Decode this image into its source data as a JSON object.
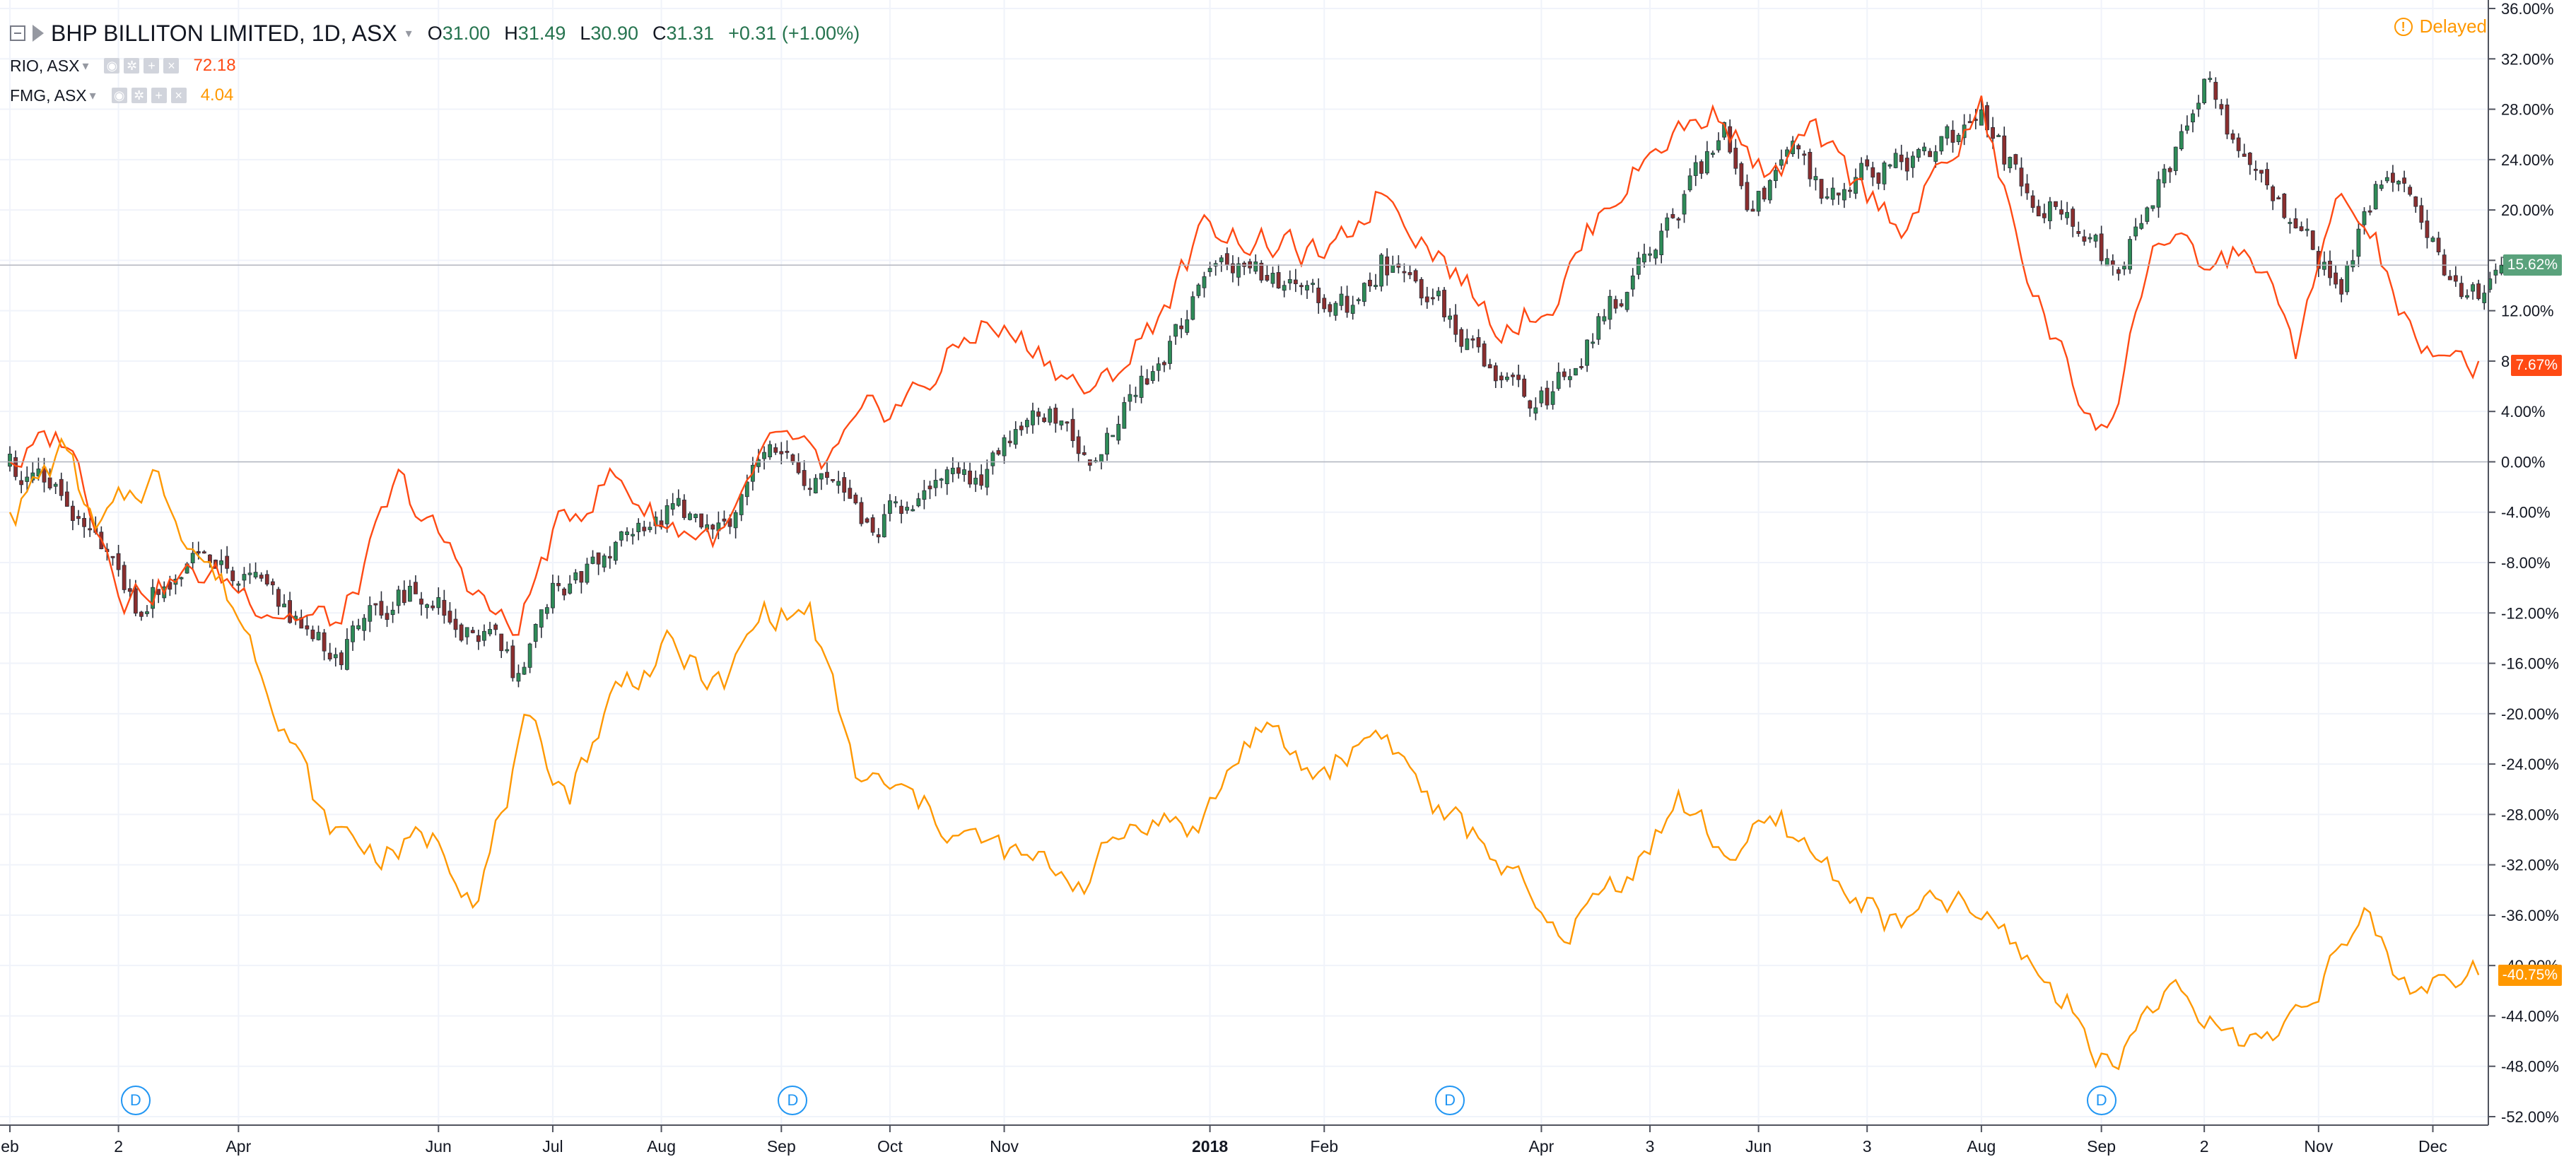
{
  "legend": {
    "main_symbol": "BHP BILLITON LIMITED, 1D, ASX",
    "open_label": "O",
    "open": "31.00",
    "high_label": "H",
    "high": "31.49",
    "low_label": "L",
    "low": "30.90",
    "close_label": "C",
    "close": "31.31",
    "change": "+0.31 (+1.00%)",
    "compare": [
      {
        "symbol": "RIO, ASX",
        "value": "72.18",
        "color": "#ff4a14"
      },
      {
        "symbol": "FMG, ASX",
        "value": "4.04",
        "color": "#ff9800"
      }
    ]
  },
  "status": {
    "delayed": "Delayed"
  },
  "dividend_marker_label": "D",
  "badges": {
    "main": "15.62%",
    "rio": "7.67%",
    "fmg": "-40.75%"
  },
  "colors": {
    "up": "#2e8b57",
    "down": "#8b2e2e",
    "rio": "#ff4a14",
    "fmg": "#ff9800",
    "grid": "#f0f3fa",
    "badge_main": "#5aa27c"
  },
  "chart_data": {
    "type": "line",
    "title": "BHP BILLITON LIMITED, 1D, ASX",
    "x_tick_labels": [
      "eb",
      "2",
      "Apr",
      "Jun",
      "Jul",
      "Aug",
      "Sep",
      "Oct",
      "Nov",
      "2018",
      "Feb",
      "Apr",
      "3",
      "Jun",
      "3",
      "Aug",
      "Sep",
      "2",
      "Nov",
      "Dec"
    ],
    "x_tick_index": [
      0,
      19,
      40,
      75,
      95,
      114,
      135,
      154,
      174,
      210,
      230,
      268,
      287,
      306,
      325,
      345,
      366,
      384,
      404,
      424
    ],
    "y_axis": {
      "unit": "%",
      "ylim": [
        -52,
        36
      ],
      "ticks": [
        "36.00%",
        "32.00%",
        "28.00%",
        "24.00%",
        "20.00%",
        "16.00%",
        "12.00%",
        "8.00%",
        "4.00%",
        "0.00%",
        "-4.00%",
        "-8.00%",
        "-12.00%",
        "-16.00%",
        "-20.00%",
        "-24.00%",
        "-28.00%",
        "-32.00%",
        "-36.00%",
        "-40.00%",
        "-44.00%",
        "-48.00%",
        "-52.00%"
      ],
      "tick_values": [
        36,
        32,
        28,
        24,
        20,
        16,
        12,
        8,
        4,
        0,
        -4,
        -8,
        -12,
        -16,
        -20,
        -24,
        -28,
        -32,
        -36,
        -40,
        -44,
        -48,
        -52
      ]
    },
    "bars_count": 430,
    "dividend_bar_index": [
      22,
      137,
      252,
      366
    ],
    "grid": true,
    "series": [
      {
        "name": "BHP BILLITON LIMITED, 1D, ASX",
        "style": "candles",
        "last_change_pct": 15.62,
        "anchors": [
          [
            0,
            0
          ],
          [
            10,
            -4
          ],
          [
            22,
            -11
          ],
          [
            35,
            -8
          ],
          [
            48,
            -12
          ],
          [
            58,
            -15
          ],
          [
            70,
            -10
          ],
          [
            85,
            -15
          ],
          [
            88,
            -17
          ],
          [
            95,
            -10
          ],
          [
            105,
            -8
          ],
          [
            115,
            -4
          ],
          [
            125,
            -5
          ],
          [
            135,
            2
          ],
          [
            142,
            -2
          ],
          [
            150,
            -5
          ],
          [
            160,
            -3
          ],
          [
            170,
            -1
          ],
          [
            180,
            4
          ],
          [
            190,
            1
          ],
          [
            200,
            7
          ],
          [
            212,
            16
          ],
          [
            225,
            13
          ],
          [
            235,
            12
          ],
          [
            240,
            16
          ],
          [
            250,
            13
          ],
          [
            258,
            7
          ],
          [
            270,
            5
          ],
          [
            278,
            11
          ],
          [
            290,
            18
          ],
          [
            300,
            26
          ],
          [
            305,
            20
          ],
          [
            312,
            24
          ],
          [
            318,
            20
          ],
          [
            325,
            23
          ],
          [
            332,
            24
          ],
          [
            345,
            27
          ],
          [
            352,
            22
          ],
          [
            362,
            19
          ],
          [
            368,
            15
          ],
          [
            375,
            20
          ],
          [
            384,
            31
          ],
          [
            392,
            23
          ],
          [
            400,
            19
          ],
          [
            408,
            14
          ],
          [
            416,
            24
          ],
          [
            422,
            20
          ],
          [
            428,
            14
          ],
          [
            433,
            14
          ],
          [
            436,
            16
          ]
        ]
      },
      {
        "name": "RIO, ASX",
        "style": "line",
        "color": "#ff4a14",
        "last_change_pct": 7.67,
        "anchors": [
          [
            0,
            0
          ],
          [
            10,
            2
          ],
          [
            20,
            -10
          ],
          [
            35,
            -9
          ],
          [
            50,
            -12
          ],
          [
            58,
            -13
          ],
          [
            68,
            -2
          ],
          [
            78,
            -8
          ],
          [
            88,
            -14
          ],
          [
            95,
            -6
          ],
          [
            105,
            -1
          ],
          [
            115,
            -5
          ],
          [
            125,
            -6
          ],
          [
            135,
            2
          ],
          [
            142,
            -1
          ],
          [
            150,
            3
          ],
          [
            160,
            6
          ],
          [
            170,
            11
          ],
          [
            180,
            9
          ],
          [
            190,
            5
          ],
          [
            200,
            11
          ],
          [
            210,
            19
          ],
          [
            222,
            17
          ],
          [
            232,
            16
          ],
          [
            240,
            22
          ],
          [
            250,
            17
          ],
          [
            260,
            11
          ],
          [
            270,
            13
          ],
          [
            280,
            21
          ],
          [
            290,
            26
          ],
          [
            300,
            28
          ],
          [
            308,
            22
          ],
          [
            315,
            26
          ],
          [
            322,
            22
          ],
          [
            332,
            19
          ],
          [
            345,
            28
          ],
          [
            352,
            16
          ],
          [
            362,
            5
          ],
          [
            368,
            3
          ],
          [
            375,
            18
          ],
          [
            384,
            15
          ],
          [
            392,
            17
          ],
          [
            400,
            9
          ],
          [
            408,
            21
          ],
          [
            414,
            17
          ],
          [
            420,
            10
          ],
          [
            426,
            7
          ],
          [
            432,
            8
          ]
        ]
      },
      {
        "name": "FMG, ASX",
        "style": "line",
        "color": "#ff9800",
        "last_change_pct": -40.75,
        "anchors": [
          [
            0,
            -4
          ],
          [
            10,
            1
          ],
          [
            15,
            -6
          ],
          [
            25,
            -1
          ],
          [
            32,
            -6
          ],
          [
            40,
            -12
          ],
          [
            48,
            -20
          ],
          [
            55,
            -29
          ],
          [
            65,
            -31
          ],
          [
            75,
            -30
          ],
          [
            82,
            -34
          ],
          [
            90,
            -22
          ],
          [
            98,
            -26
          ],
          [
            106,
            -18
          ],
          [
            115,
            -15
          ],
          [
            125,
            -18
          ],
          [
            132,
            -12
          ],
          [
            140,
            -12
          ],
          [
            148,
            -25
          ],
          [
            158,
            -27
          ],
          [
            168,
            -30
          ],
          [
            178,
            -32
          ],
          [
            188,
            -33
          ],
          [
            198,
            -28
          ],
          [
            208,
            -29
          ],
          [
            218,
            -21
          ],
          [
            228,
            -25
          ],
          [
            240,
            -21
          ],
          [
            250,
            -28
          ],
          [
            260,
            -31
          ],
          [
            270,
            -38
          ],
          [
            282,
            -33
          ],
          [
            292,
            -27
          ],
          [
            300,
            -31
          ],
          [
            310,
            -29
          ],
          [
            320,
            -33
          ],
          [
            330,
            -37
          ],
          [
            340,
            -35
          ],
          [
            350,
            -38
          ],
          [
            360,
            -43
          ],
          [
            368,
            -48
          ],
          [
            376,
            -42
          ],
          [
            386,
            -45
          ],
          [
            396,
            -46
          ],
          [
            405,
            -40
          ],
          [
            412,
            -37
          ],
          [
            420,
            -42
          ],
          [
            427,
            -40
          ],
          [
            432,
            -40.75
          ]
        ]
      }
    ]
  }
}
